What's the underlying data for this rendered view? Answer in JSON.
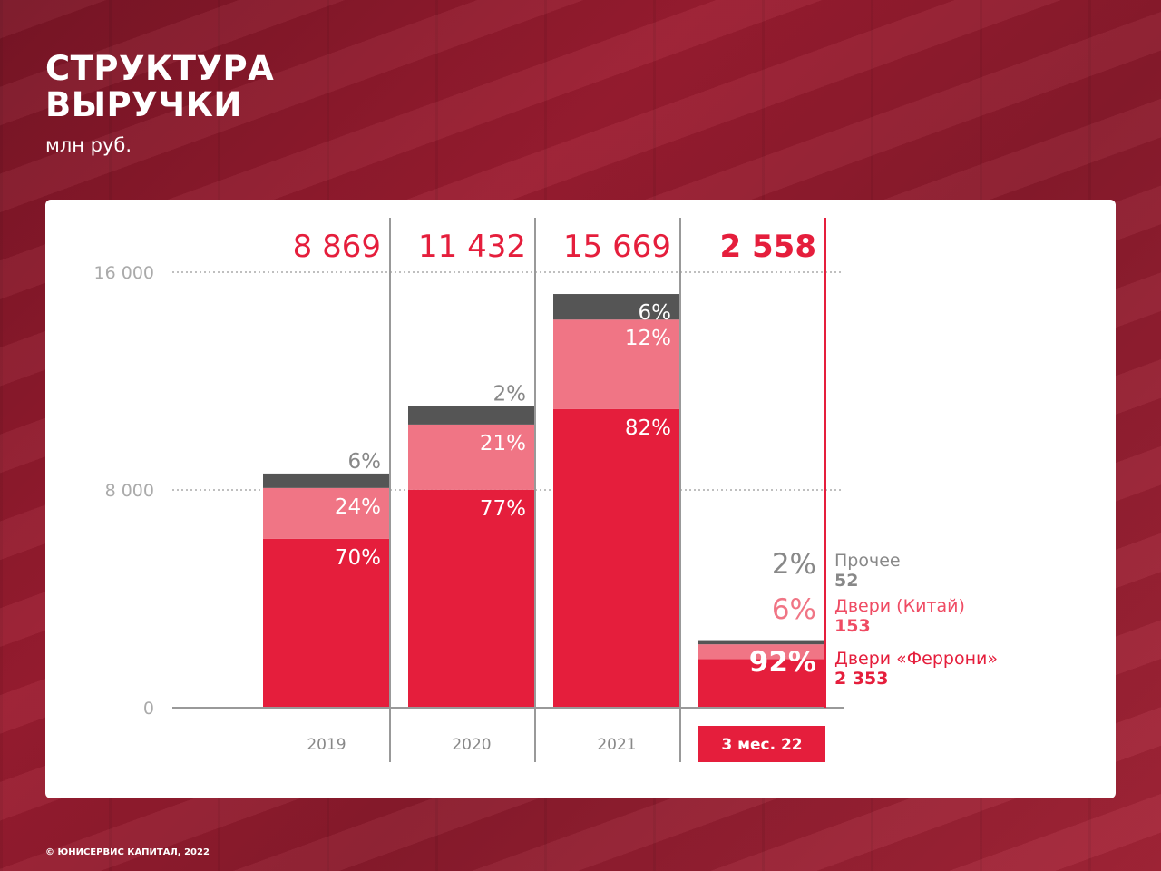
{
  "title_line1": "СТРУКТУРА",
  "title_line2": "ВЫРУЧКИ",
  "unit": "млн руб.",
  "copyright": "© ЮНИСЕРВИС КАПИТАЛ, 2022",
  "colors": {
    "ferroni": "#e51e3c",
    "china": "#f07585",
    "other": "#555555",
    "grid": "#999999"
  },
  "chart_data": {
    "type": "bar",
    "stacked": true,
    "title": "Структура выручки",
    "ylabel": "млн руб.",
    "ylim": [
      0,
      16000
    ],
    "yticks": [
      "0",
      "8 000",
      "16 000"
    ],
    "ytick_values": [
      0,
      8000,
      16000
    ],
    "categories": [
      "2019",
      "2020",
      "2021",
      "3 мес. 22"
    ],
    "totals": [
      8869,
      11432,
      15669,
      2558
    ],
    "total_labels": [
      "8 869",
      "11 432",
      "15 669",
      "2 558"
    ],
    "series": [
      {
        "name": "Двери «Феррони»",
        "shares": [
          70,
          77,
          82,
          92
        ],
        "share_labels": [
          "70%",
          "77%",
          "82%",
          "92%"
        ],
        "last_value": "2 353",
        "values": [
          6208,
          8803,
          12849,
          2353
        ]
      },
      {
        "name": "Двери (Китай)",
        "shares": [
          24,
          21,
          12,
          6
        ],
        "share_labels": [
          "24%",
          "21%",
          "12%",
          "6%"
        ],
        "last_value": "153",
        "values": [
          2129,
          2401,
          1880,
          153
        ]
      },
      {
        "name": "Прочее",
        "shares": [
          6,
          2,
          6,
          2
        ],
        "share_labels": [
          "6%",
          "2%",
          "6%",
          "2%"
        ],
        "last_value": "52",
        "values": [
          532,
          228,
          940,
          52
        ]
      }
    ],
    "legend_placement": "right of last bar"
  }
}
